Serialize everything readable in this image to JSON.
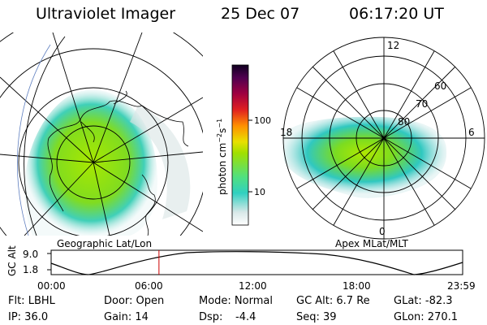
{
  "header": {
    "instrument": "Ultraviolet Imager",
    "date": "25 Dec 07",
    "time": "06:17:20 UT"
  },
  "colorbar": {
    "label_prefix": "photon cm",
    "exp1": "−2",
    "mid": "s",
    "exp2": "−1",
    "ticks": [
      "100",
      "10"
    ]
  },
  "geo_panel": {
    "caption": "Geographic Lat/Lon"
  },
  "apex_panel": {
    "caption": "Apex MLat/MLT",
    "mlt_labels": {
      "top": "12",
      "left": "18",
      "right": "6",
      "bottom": "0"
    },
    "lat_labels": [
      "60",
      "70",
      "80"
    ]
  },
  "altitude_plot": {
    "ylabel": "GC Alt",
    "yticks": [
      "9.0",
      "1.8"
    ],
    "xticks": [
      "00:00",
      "06:00",
      "12:00",
      "18:00",
      "23:59"
    ],
    "current_time_hours": 6.289,
    "alt_range_re": [
      1.8,
      9.0
    ]
  },
  "info": {
    "filter": "Flt: LBHL",
    "door": "Door: Open",
    "mode": "Mode: Normal",
    "gc_alt": "GC Alt: 6.7 Re",
    "glat": "GLat: -82.3",
    "ip": "IP: 36.0",
    "gain": "Gain: 14",
    "dsp_label": "Dsp:",
    "dsp_value": "-4.4",
    "seq": "Seq: 39",
    "glon": "GLon: 270.1"
  },
  "colors": {
    "aurora_low": "#40d8c8",
    "aurora_mid": "#9be000",
    "aurora_high": "#e8e000",
    "marker": "#cc0000"
  }
}
